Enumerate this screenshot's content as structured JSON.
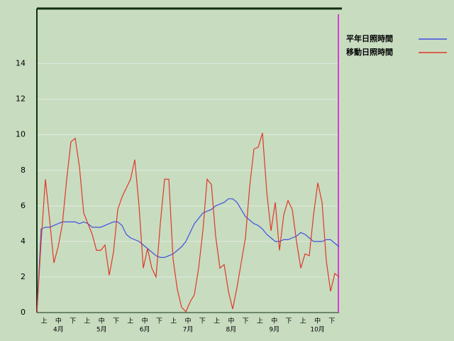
{
  "chart_data": {
    "type": "line",
    "series": [
      {
        "name": "平年日照時間",
        "color": "#4050e0",
        "values": [
          0,
          4.7,
          4.8,
          4.8,
          4.9,
          5.0,
          5.1,
          5.1,
          5.1,
          5.1,
          5.0,
          5.1,
          5.0,
          4.8,
          4.8,
          4.8,
          4.9,
          5.0,
          5.1,
          5.1,
          4.9,
          4.4,
          4.2,
          4.1,
          4.0,
          3.8,
          3.6,
          3.4,
          3.2,
          3.1,
          3.1,
          3.2,
          3.3,
          3.5,
          3.7,
          4.0,
          4.5,
          5.0,
          5.3,
          5.6,
          5.7,
          5.8,
          6.0,
          6.1,
          6.2,
          6.4,
          6.4,
          6.2,
          5.8,
          5.4,
          5.2,
          5.0,
          4.9,
          4.7,
          4.4,
          4.2,
          4.0,
          4.0,
          4.1,
          4.1,
          4.2,
          4.3,
          4.5,
          4.4,
          4.2,
          4.0,
          4.0,
          4.0,
          4.1,
          4.1,
          3.9,
          3.7
        ]
      },
      {
        "name": "移動日照時間",
        "color": "#e03828",
        "values": [
          0,
          4,
          7.5,
          5.2,
          2.8,
          3.7,
          5,
          7.5,
          9.6,
          9.8,
          8.2,
          5.6,
          5,
          4.4,
          3.5,
          3.5,
          3.8,
          2.1,
          3.4,
          5.8,
          6.5,
          7,
          7.5,
          8.6,
          6,
          2.5,
          3.6,
          2.5,
          2,
          5,
          7.5,
          7.5,
          3,
          1.3,
          0.3,
          0.05,
          0.6,
          1,
          2.5,
          4.6,
          7.5,
          7.2,
          4.3,
          2.5,
          2.7,
          1.2,
          0.2,
          1.4,
          2.8,
          4.2,
          7.1,
          9.2,
          9.3,
          10.1,
          6.8,
          4.6,
          6.2,
          3.5,
          5.5,
          6.3,
          5.8,
          4.0,
          2.5,
          3.3,
          3.2,
          5.5,
          7.3,
          6.2,
          2.9,
          1.2,
          2.2,
          2.0
        ]
      }
    ],
    "dekad_labels": [
      "上",
      "中",
      "下",
      "上",
      "中",
      "下",
      "上",
      "中",
      "下",
      "上",
      "中",
      "下",
      "上",
      "中",
      "下",
      "上",
      "中",
      "下",
      "上",
      "中",
      "下"
    ],
    "month_labels": [
      "4月",
      "5月",
      "6月",
      "7月",
      "8月",
      "9月",
      "10月"
    ],
    "ylim": [
      0,
      17.1
    ],
    "yticks": [
      0,
      2,
      4,
      6,
      8,
      10,
      12,
      14
    ],
    "grid": true
  }
}
